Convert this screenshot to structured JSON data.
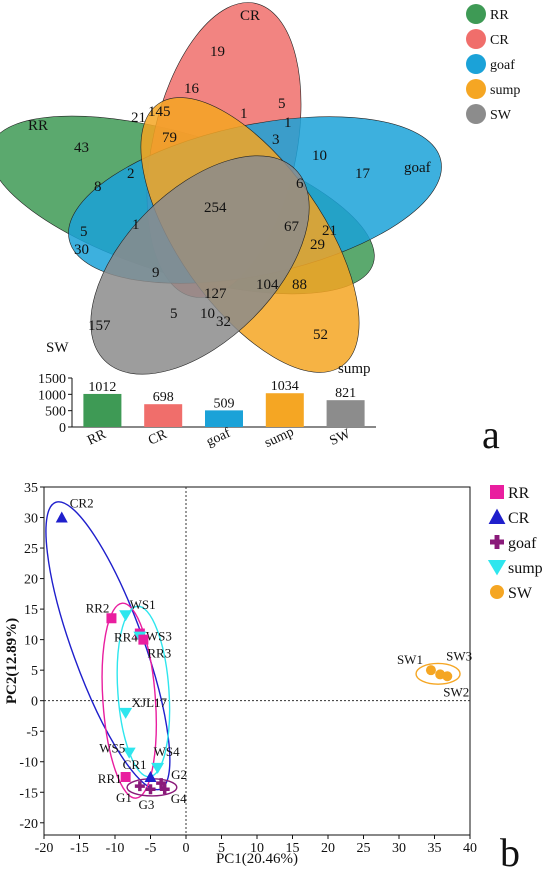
{
  "panel_a": {
    "panel_label": "a",
    "venn": {
      "sets": [
        {
          "name": "RR",
          "color": "#3e9a55"
        },
        {
          "name": "CR",
          "color": "#f06e6b"
        },
        {
          "name": "goaf",
          "color": "#1ba2d8"
        },
        {
          "name": "sump",
          "color": "#f5a623"
        },
        {
          "name": "SW",
          "color": "#8c8c8c"
        }
      ],
      "region_counts": [
        "19",
        "16",
        "1",
        "5",
        "1",
        "145",
        "21",
        "79",
        "3",
        "10",
        "17",
        "6",
        "43",
        "2",
        "8",
        "254",
        "67",
        "1",
        "5",
        "30",
        "29",
        "21",
        "9",
        "127",
        "104",
        "88",
        "157",
        "5",
        "10",
        "32",
        "52"
      ]
    },
    "chart_data": {
      "type": "bar",
      "categories": [
        "RR",
        "CR",
        "goaf",
        "sump",
        "SW"
      ],
      "values": [
        1012,
        698,
        509,
        1034,
        821
      ],
      "value_labels": [
        "1012",
        "698",
        "509",
        "1034",
        "821"
      ],
      "colors": [
        "#3e9a55",
        "#f06e6b",
        "#1ba2d8",
        "#f5a623",
        "#8c8c8c"
      ],
      "ylim": [
        0,
        1500
      ],
      "yticks": [
        "0",
        "500",
        "1000",
        "1500"
      ]
    }
  },
  "panel_b": {
    "panel_label": "b",
    "legend": [
      {
        "name": "RR",
        "color": "#e91e9f",
        "marker": "square"
      },
      {
        "name": "CR",
        "color": "#1f1fcc",
        "marker": "triangle-up"
      },
      {
        "name": "goaf",
        "color": "#8a1a7a",
        "marker": "plus"
      },
      {
        "name": "sump",
        "color": "#2ee6ee",
        "marker": "triangle-down"
      },
      {
        "name": "SW",
        "color": "#f5a623",
        "marker": "circle"
      }
    ],
    "chart_data": {
      "type": "scatter",
      "xlabel": "PC1(20.46%)",
      "ylabel": "PC2(12.89%)",
      "xlim": [
        -20,
        40
      ],
      "ylim": [
        -22,
        35
      ],
      "xticks": [
        -20,
        -15,
        -10,
        -5,
        0,
        5,
        10,
        15,
        20,
        25,
        30,
        35,
        40
      ],
      "yticks": [
        -20,
        -15,
        -10,
        -5,
        0,
        5,
        10,
        15,
        20,
        25,
        30,
        35
      ],
      "points": [
        {
          "label": "CR2",
          "group": "CR",
          "x": -17.5,
          "y": 30
        },
        {
          "label": "RR2",
          "group": "RR",
          "x": -10.5,
          "y": 13.5
        },
        {
          "label": "WS1",
          "group": "sump",
          "x": -8.5,
          "y": 14
        },
        {
          "label": "RR4",
          "group": "RR",
          "x": -6.5,
          "y": 11
        },
        {
          "label": "WS3",
          "group": "sump",
          "x": -6.5,
          "y": 10.5
        },
        {
          "label": "RR3",
          "group": "RR",
          "x": -6,
          "y": 10
        },
        {
          "label": "XJL17",
          "group": "sump",
          "x": -8.5,
          "y": -2
        },
        {
          "label": "WS5",
          "group": "sump",
          "x": -8,
          "y": -8.5
        },
        {
          "label": "WS4",
          "group": "sump",
          "x": -4,
          "y": -11
        },
        {
          "label": "RR1",
          "group": "RR",
          "x": -8.5,
          "y": -12.5
        },
        {
          "label": "CR1",
          "group": "CR",
          "x": -5,
          "y": -12.5
        },
        {
          "label": "G1",
          "group": "goaf",
          "x": -6.5,
          "y": -14
        },
        {
          "label": "G2",
          "group": "goaf",
          "x": -3.5,
          "y": -13.5
        },
        {
          "label": "G3",
          "group": "goaf",
          "x": -5,
          "y": -14.5
        },
        {
          "label": "G4",
          "group": "goaf",
          "x": -3,
          "y": -14.5
        },
        {
          "label": "SW1",
          "group": "SW",
          "x": 34.5,
          "y": 5
        },
        {
          "label": "SW3",
          "group": "SW",
          "x": 35.8,
          "y": 4.3
        },
        {
          "label": "SW2",
          "group": "SW",
          "x": 36.8,
          "y": 4
        }
      ]
    }
  }
}
